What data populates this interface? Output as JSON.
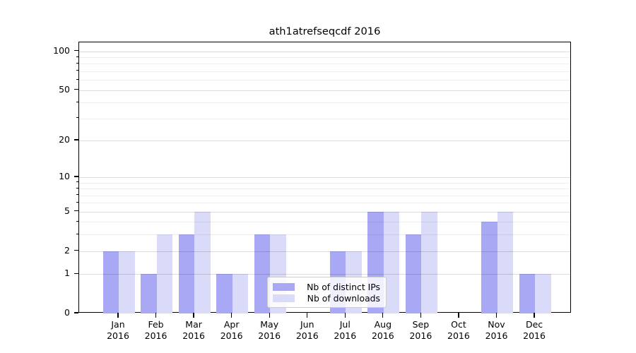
{
  "chart_data": {
    "type": "bar",
    "title": "ath1atrefseqcdf 2016",
    "categories": [
      "Jan",
      "Feb",
      "Mar",
      "Apr",
      "May",
      "Jun",
      "Jul",
      "Aug",
      "Sep",
      "Oct",
      "Nov",
      "Dec"
    ],
    "category_year": "2016",
    "series": [
      {
        "name": "Nb of distinct IPs",
        "color": "#a8a8f5",
        "values": [
          2,
          1,
          3,
          1,
          3,
          0,
          2,
          5,
          3,
          0,
          4,
          1
        ]
      },
      {
        "name": "Nb of downloads",
        "color": "#dadaf9",
        "values": [
          2,
          3,
          5,
          1,
          3,
          0,
          2,
          5,
          5,
          0,
          5,
          1
        ]
      }
    ],
    "y_axis": {
      "scale": "log1p",
      "major_ticks": [
        0,
        1,
        2,
        5,
        10,
        20,
        50,
        100
      ],
      "minor_gridlines": [
        3,
        4,
        6,
        7,
        8,
        9,
        30,
        40,
        60,
        70,
        80,
        90
      ],
      "ylim": [
        0,
        117
      ]
    },
    "x_axis": {
      "label_lines": 2
    },
    "grid": "horizontal",
    "legend": {
      "position": "lower center",
      "entries": [
        "Nb of distinct IPs",
        "Nb of downloads"
      ]
    }
  }
}
